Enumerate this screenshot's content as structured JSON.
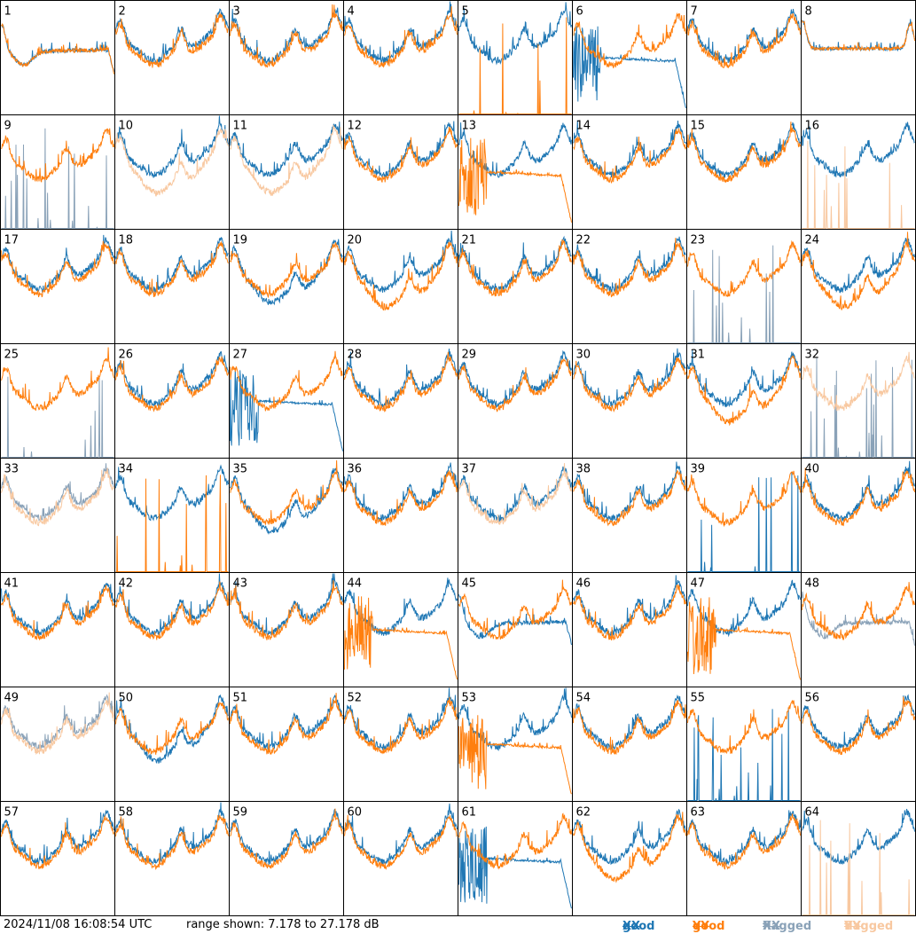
{
  "footer": {
    "timestamp": "2024/11/08 16:08:54 UTC",
    "range_text": "range shown: 7.178 to 27.178 dB",
    "legend": [
      {
        "word": "good",
        "pol": "XX",
        "color": "#1f77b4"
      },
      {
        "word": "good",
        "pol": "YY",
        "color": "#ff7f0e"
      },
      {
        "word": "flagged",
        "pol": "XX",
        "color": "#8aa2b8"
      },
      {
        "word": "flagged",
        "pol": "YY",
        "color": "#f8c8a0"
      }
    ]
  },
  "chart_data": {
    "type": "line",
    "ylim": [
      7.178,
      27.178
    ],
    "grid": false,
    "panels": [
      {
        "id": "1",
        "xx": "good",
        "yy": "good",
        "xx_shape": "sag",
        "yy_shape": "sag"
      },
      {
        "id": "2",
        "xx": "good",
        "yy": "good",
        "xx_shape": "normal",
        "yy_shape": "normal"
      },
      {
        "id": "3",
        "xx": "good",
        "yy": "good",
        "xx_shape": "normal",
        "yy_shape": "normal"
      },
      {
        "id": "4",
        "xx": "good",
        "yy": "good",
        "xx_shape": "normal",
        "yy_shape": "normal"
      },
      {
        "id": "5",
        "xx": "good",
        "yy": "good",
        "xx_shape": "normal",
        "yy_shape": "spikes"
      },
      {
        "id": "6",
        "xx": "good",
        "yy": "good",
        "xx_shape": "decay",
        "yy_shape": "normal"
      },
      {
        "id": "7",
        "xx": "good",
        "yy": "good",
        "xx_shape": "normal",
        "yy_shape": "normal"
      },
      {
        "id": "8",
        "xx": "good",
        "yy": "good",
        "xx_shape": "flat",
        "yy_shape": "flat"
      },
      {
        "id": "9",
        "xx": "flagged",
        "yy": "good",
        "xx_shape": "spikes",
        "yy_shape": "normal"
      },
      {
        "id": "10",
        "xx": "good",
        "yy": "flagged",
        "xx_shape": "normal",
        "yy_shape": "low"
      },
      {
        "id": "11",
        "xx": "good",
        "yy": "flagged",
        "xx_shape": "normal",
        "yy_shape": "low"
      },
      {
        "id": "12",
        "xx": "good",
        "yy": "good",
        "xx_shape": "normal",
        "yy_shape": "normal"
      },
      {
        "id": "13",
        "xx": "good",
        "yy": "good",
        "xx_shape": "normal",
        "yy_shape": "decay"
      },
      {
        "id": "14",
        "xx": "good",
        "yy": "good",
        "xx_shape": "normal",
        "yy_shape": "normal"
      },
      {
        "id": "15",
        "xx": "good",
        "yy": "good",
        "xx_shape": "normal",
        "yy_shape": "normal"
      },
      {
        "id": "16",
        "xx": "good",
        "yy": "flagged",
        "xx_shape": "normal",
        "yy_shape": "spikes"
      },
      {
        "id": "17",
        "xx": "good",
        "yy": "good",
        "xx_shape": "normal",
        "yy_shape": "normal"
      },
      {
        "id": "18",
        "xx": "good",
        "yy": "good",
        "xx_shape": "normal",
        "yy_shape": "normal"
      },
      {
        "id": "19",
        "xx": "good",
        "yy": "good",
        "xx_shape": "low",
        "yy_shape": "normal"
      },
      {
        "id": "20",
        "xx": "good",
        "yy": "good",
        "xx_shape": "normal",
        "yy_shape": "low"
      },
      {
        "id": "21",
        "xx": "good",
        "yy": "good",
        "xx_shape": "normal",
        "yy_shape": "normal"
      },
      {
        "id": "22",
        "xx": "good",
        "yy": "good",
        "xx_shape": "normal",
        "yy_shape": "normal"
      },
      {
        "id": "23",
        "xx": "flagged",
        "yy": "good",
        "xx_shape": "spikes",
        "yy_shape": "normal"
      },
      {
        "id": "24",
        "xx": "good",
        "yy": "good",
        "xx_shape": "normal",
        "yy_shape": "low"
      },
      {
        "id": "25",
        "xx": "flagged",
        "yy": "good",
        "xx_shape": "spikes",
        "yy_shape": "normal"
      },
      {
        "id": "26",
        "xx": "good",
        "yy": "good",
        "xx_shape": "normal",
        "yy_shape": "normal"
      },
      {
        "id": "27",
        "xx": "good",
        "yy": "good",
        "xx_shape": "decay",
        "yy_shape": "normal"
      },
      {
        "id": "28",
        "xx": "good",
        "yy": "good",
        "xx_shape": "normal",
        "yy_shape": "normal"
      },
      {
        "id": "29",
        "xx": "good",
        "yy": "good",
        "xx_shape": "normal",
        "yy_shape": "normal"
      },
      {
        "id": "30",
        "xx": "good",
        "yy": "good",
        "xx_shape": "normal",
        "yy_shape": "normal"
      },
      {
        "id": "31",
        "xx": "good",
        "yy": "good",
        "xx_shape": "normal",
        "yy_shape": "low"
      },
      {
        "id": "32",
        "xx": "flagged",
        "yy": "flagged",
        "xx_shape": "spikes",
        "yy_shape": "normal"
      },
      {
        "id": "33",
        "xx": "flagged",
        "yy": "flagged",
        "xx_shape": "normal",
        "yy_shape": "normal"
      },
      {
        "id": "34",
        "xx": "good",
        "yy": "good",
        "xx_shape": "normal",
        "yy_shape": "spikes"
      },
      {
        "id": "35",
        "xx": "good",
        "yy": "good",
        "xx_shape": "low",
        "yy_shape": "normal"
      },
      {
        "id": "36",
        "xx": "good",
        "yy": "good",
        "xx_shape": "normal",
        "yy_shape": "normal"
      },
      {
        "id": "37",
        "xx": "good",
        "yy": "flagged",
        "xx_shape": "normal",
        "yy_shape": "normal"
      },
      {
        "id": "38",
        "xx": "good",
        "yy": "good",
        "xx_shape": "normal",
        "yy_shape": "normal"
      },
      {
        "id": "39",
        "xx": "good",
        "yy": "good",
        "xx_shape": "spikes",
        "yy_shape": "normal"
      },
      {
        "id": "40",
        "xx": "good",
        "yy": "good",
        "xx_shape": "normal",
        "yy_shape": "normal"
      },
      {
        "id": "41",
        "xx": "good",
        "yy": "good",
        "xx_shape": "normal",
        "yy_shape": "normal"
      },
      {
        "id": "42",
        "xx": "good",
        "yy": "good",
        "xx_shape": "normal",
        "yy_shape": "normal"
      },
      {
        "id": "43",
        "xx": "good",
        "yy": "good",
        "xx_shape": "normal",
        "yy_shape": "normal"
      },
      {
        "id": "44",
        "xx": "good",
        "yy": "good",
        "xx_shape": "normal",
        "yy_shape": "decay"
      },
      {
        "id": "45",
        "xx": "good",
        "yy": "good",
        "xx_shape": "sag",
        "yy_shape": "normal"
      },
      {
        "id": "46",
        "xx": "good",
        "yy": "good",
        "xx_shape": "normal",
        "yy_shape": "normal"
      },
      {
        "id": "47",
        "xx": "good",
        "yy": "good",
        "xx_shape": "normal",
        "yy_shape": "decay"
      },
      {
        "id": "48",
        "xx": "flagged",
        "yy": "good",
        "xx_shape": "sag",
        "yy_shape": "normal"
      },
      {
        "id": "49",
        "xx": "flagged",
        "yy": "flagged",
        "xx_shape": "normal",
        "yy_shape": "normal"
      },
      {
        "id": "50",
        "xx": "good",
        "yy": "good",
        "xx_shape": "low",
        "yy_shape": "normal"
      },
      {
        "id": "51",
        "xx": "good",
        "yy": "good",
        "xx_shape": "normal",
        "yy_shape": "normal"
      },
      {
        "id": "52",
        "xx": "good",
        "yy": "good",
        "xx_shape": "normal",
        "yy_shape": "normal"
      },
      {
        "id": "53",
        "xx": "good",
        "yy": "good",
        "xx_shape": "normal",
        "yy_shape": "decay"
      },
      {
        "id": "54",
        "xx": "good",
        "yy": "good",
        "xx_shape": "normal",
        "yy_shape": "normal"
      },
      {
        "id": "55",
        "xx": "good",
        "yy": "good",
        "xx_shape": "spikes",
        "yy_shape": "normal"
      },
      {
        "id": "56",
        "xx": "good",
        "yy": "good",
        "xx_shape": "normal",
        "yy_shape": "normal"
      },
      {
        "id": "57",
        "xx": "good",
        "yy": "good",
        "xx_shape": "normal",
        "yy_shape": "normal"
      },
      {
        "id": "58",
        "xx": "good",
        "yy": "good",
        "xx_shape": "normal",
        "yy_shape": "normal"
      },
      {
        "id": "59",
        "xx": "good",
        "yy": "good",
        "xx_shape": "normal",
        "yy_shape": "normal"
      },
      {
        "id": "60",
        "xx": "good",
        "yy": "good",
        "xx_shape": "normal",
        "yy_shape": "normal"
      },
      {
        "id": "61",
        "xx": "good",
        "yy": "good",
        "xx_shape": "decay",
        "yy_shape": "normal"
      },
      {
        "id": "62",
        "xx": "good",
        "yy": "good",
        "xx_shape": "normal",
        "yy_shape": "low"
      },
      {
        "id": "63",
        "xx": "good",
        "yy": "good",
        "xx_shape": "normal",
        "yy_shape": "normal"
      },
      {
        "id": "64",
        "xx": "good",
        "yy": "flagged",
        "xx_shape": "normal",
        "yy_shape": "spikes"
      }
    ]
  }
}
